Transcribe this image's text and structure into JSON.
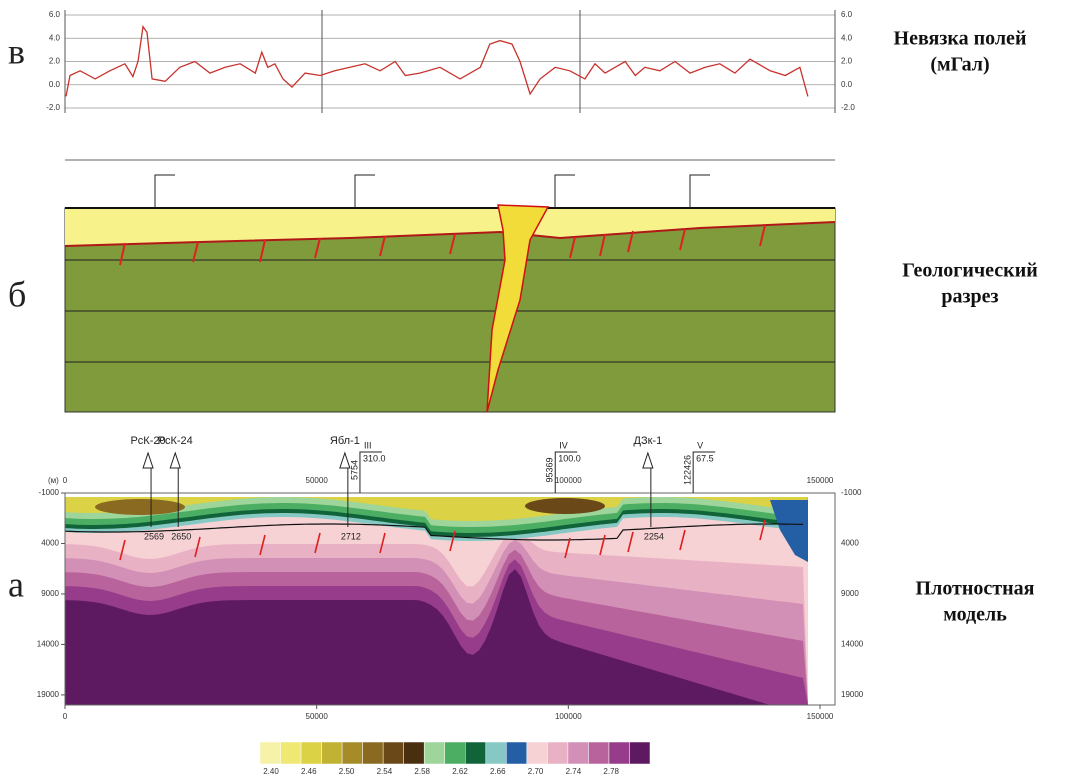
{
  "chart_data": [
    {
      "type": "line",
      "panel_label": "в",
      "title_lines": [
        "Невязка полей",
        "(мГал)"
      ],
      "x": [
        200,
        1000,
        3000,
        6000,
        8900,
        11900,
        13500,
        14500,
        15500,
        16300,
        17300,
        19900,
        22800,
        25800,
        28800,
        31800,
        34800,
        37800,
        39100,
        40300,
        41700,
        43300,
        45100,
        47700,
        50700,
        53600,
        56600,
        59600,
        62600,
        65600,
        67600,
        70500,
        74500,
        78500,
        82500,
        84400,
        86400,
        88800,
        90400,
        92400,
        94400,
        97400,
        100300,
        103300,
        105300,
        107300,
        109300,
        111300,
        113300,
        115200,
        118200,
        121200,
        124200,
        127200,
        130100,
        133100,
        136100,
        140100,
        143100,
        146000,
        147600
      ],
      "values": [
        -1,
        0.8,
        1.2,
        0.5,
        1.2,
        1.8,
        0.7,
        2,
        5,
        4.5,
        0.5,
        0.3,
        1.5,
        2,
        1,
        1.5,
        1.8,
        1,
        2.8,
        1.5,
        1.8,
        0.5,
        -0.2,
        1,
        0.8,
        1.2,
        1.5,
        1.8,
        1.2,
        2,
        0.8,
        1,
        1.5,
        0.5,
        1.5,
        3.5,
        3.8,
        3.5,
        2,
        -0.8,
        0.5,
        1.5,
        1.2,
        0.5,
        1.8,
        1,
        1.5,
        2,
        0.8,
        1.5,
        1.2,
        2,
        1,
        1.5,
        1.8,
        1,
        2.2,
        1.2,
        0.8,
        1.5,
        -1
      ],
      "color": "#c8322c",
      "xlim": [
        0,
        150000
      ],
      "ylim": [
        -2,
        6
      ],
      "yticks": [
        {
          "value": -2,
          "label": "-2.0"
        },
        {
          "value": 0,
          "label": "0.0"
        },
        {
          "value": 2,
          "label": "2.0"
        },
        {
          "value": 4,
          "label": "4.0"
        },
        {
          "value": 6,
          "label": "6.0"
        }
      ],
      "grid": true
    },
    {
      "type": "contour",
      "panel_label": "а",
      "title_lines": [
        "Плотностная",
        "модель"
      ],
      "y_unit_label": "(м)",
      "xlim": [
        0,
        150000
      ],
      "ylim": [
        -1000,
        20000
      ],
      "xticks": [
        0,
        50000,
        100000,
        150000
      ],
      "yticks": [
        -1000,
        4000,
        9000,
        14000,
        19000
      ],
      "colorbar": {
        "colors": [
          "#f6f3a8",
          "#efe873",
          "#dcd246",
          "#c2b234",
          "#a58c28",
          "#8a6a20",
          "#6a4818",
          "#4a2e10",
          "#9dd59a",
          "#4cae62",
          "#11643a",
          "#86c9c4",
          "#245fa6",
          "#f7d2d4",
          "#e9b2c4",
          "#d390b6",
          "#b9639d",
          "#963c8a",
          "#5e1a60"
        ],
        "ticks": [
          {
            "value": 2.4,
            "label": "2.40"
          },
          {
            "value": 2.46,
            "label": "2.46"
          },
          {
            "value": 2.5,
            "label": "2.50"
          },
          {
            "value": 2.54,
            "label": "2.54"
          },
          {
            "value": 2.58,
            "label": "2.58"
          },
          {
            "value": 2.62,
            "label": "2.62"
          },
          {
            "value": 2.66,
            "label": "2.66"
          },
          {
            "value": 2.7,
            "label": "2.70"
          },
          {
            "value": 2.74,
            "label": "2.74"
          },
          {
            "value": 2.78,
            "label": "2.78"
          }
        ]
      },
      "wells": [
        {
          "name": "РсК-20",
          "x": 16500,
          "depth_label": "2569"
        },
        {
          "name": "РсК-24",
          "x": 21900,
          "depth_label": "2650"
        },
        {
          "name": "Ябл-1",
          "x": 55600,
          "depth_label": "2712"
        },
        {
          "name": "ДЗк-1",
          "x": 115800,
          "depth_label": "2254"
        }
      ],
      "profiles": [
        {
          "number": "III",
          "code": "5754",
          "x": 58600,
          "value_label": "310.0"
        },
        {
          "number": "IV",
          "code": "95369",
          "x": 97400,
          "value_label": "100.0"
        },
        {
          "number": "V",
          "code": "122426",
          "x": 124800,
          "value_label": "67.5"
        }
      ]
    }
  ],
  "section": {
    "panel_label": "б",
    "title_lines": [
      "Геологический",
      "разрез"
    ]
  }
}
